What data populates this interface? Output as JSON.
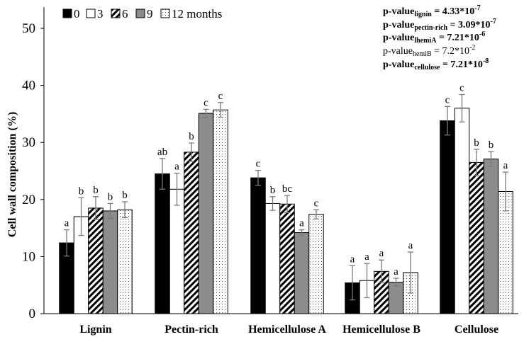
{
  "chart_data": {
    "type": "bar",
    "ylabel": "Cell wall composition (%)",
    "ylim": [
      0,
      50
    ],
    "yticks": [
      0,
      10,
      20,
      30,
      40,
      50
    ],
    "categories": [
      "Lignin",
      "Pectin-rich",
      "Hemicellulose A",
      "Hemicellulose B",
      "Cellulose"
    ],
    "series": [
      {
        "name": "0",
        "pattern": "solid-black",
        "values": [
          12.4,
          24.5,
          23.8,
          5.4,
          33.8
        ],
        "errors": [
          2.3,
          2.7,
          1.3,
          3.0,
          2.5
        ],
        "letters": [
          "a",
          "ab",
          "c",
          "a",
          "c"
        ]
      },
      {
        "name": "3",
        "pattern": "white",
        "values": [
          17.0,
          21.8,
          19.3,
          5.8,
          36.0
        ],
        "errors": [
          3.3,
          2.8,
          1.2,
          3.0,
          2.4
        ],
        "letters": [
          "b",
          "a",
          "b",
          "a",
          "c"
        ]
      },
      {
        "name": "6",
        "pattern": "diagonal-stripes",
        "values": [
          18.5,
          28.3,
          19.2,
          7.4,
          26.5
        ],
        "errors": [
          2.0,
          1.6,
          1.5,
          2.0,
          2.3
        ],
        "letters": [
          "b",
          "b",
          "bc",
          "a",
          "b"
        ]
      },
      {
        "name": "9",
        "pattern": "solid-gray",
        "values": [
          18.0,
          35.1,
          14.2,
          5.5,
          27.1
        ],
        "errors": [
          1.3,
          0.7,
          0.5,
          0.7,
          1.3
        ],
        "letters": [
          "b",
          "c",
          "a",
          "a",
          "b"
        ]
      },
      {
        "name": "12 months",
        "pattern": "dotted",
        "values": [
          18.2,
          35.7,
          17.4,
          7.2,
          21.4
        ],
        "errors": [
          1.4,
          1.3,
          0.8,
          3.6,
          3.4
        ],
        "letters": [
          "b",
          "c",
          "c",
          "a",
          "a"
        ]
      }
    ],
    "legend_position": "top-left",
    "grid": false,
    "annotations": [
      {
        "prefix": "p-value",
        "sub": "lignin",
        "value": "= 4.33*10",
        "exp": "-7",
        "bold": true
      },
      {
        "prefix": "p-value",
        "sub": "pectin-rich",
        "value": "= 3.09*10",
        "exp": "-7",
        "bold": true
      },
      {
        "prefix": "p-value",
        "sub": "lhemiA",
        "value": "= 7.21*10",
        "exp": "-6",
        "bold": true
      },
      {
        "prefix": "p-value",
        "sub": "hemiB",
        "value": "= 7.2*10",
        "exp": "-2",
        "bold": false
      },
      {
        "prefix": "p-value",
        "sub": "cellulose",
        "value": "= 7.21*10",
        "exp": "-8",
        "bold": true
      }
    ]
  },
  "colors": {
    "black_bar": "#000000",
    "gray_bar": "#8c8c8c",
    "white_bar": "#ffffff",
    "axis": "#000000",
    "error_bar": "#7a7a7a"
  }
}
